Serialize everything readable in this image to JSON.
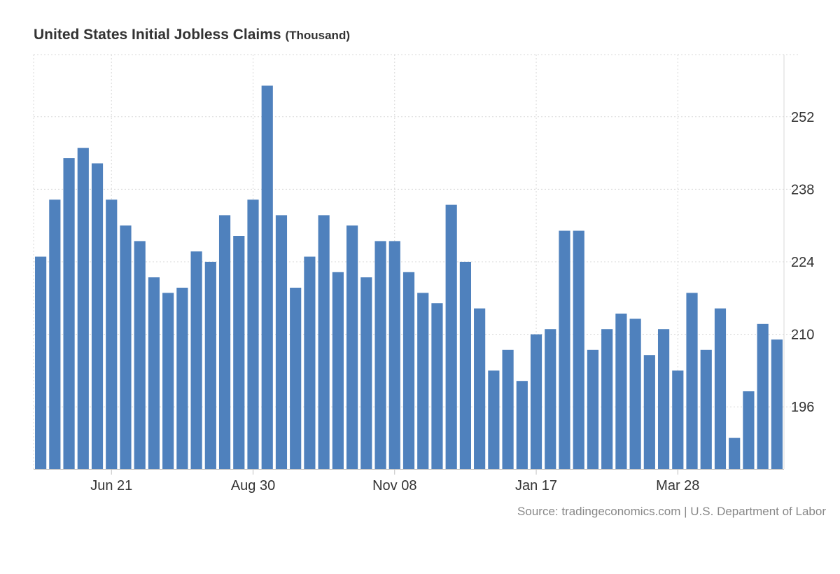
{
  "chart_data": {
    "type": "bar",
    "title": "United States Initial Jobless Claims",
    "unit": "(Thousand)",
    "source": "Source: tradingeconomics.com | U.S. Department of Labor",
    "bar_color": "#4f81bd",
    "grid": true,
    "ylim": [
      184,
      264
    ],
    "y_ticks": [
      196,
      210,
      224,
      238,
      252
    ],
    "x_ticks": [
      {
        "label": "Jun 21",
        "index": 5
      },
      {
        "label": "Aug 30",
        "index": 15
      },
      {
        "label": "Nov 08",
        "index": 25
      },
      {
        "label": "Jan 17",
        "index": 35
      },
      {
        "label": "Mar 28",
        "index": 45
      }
    ],
    "values": [
      225,
      236,
      244,
      246,
      243,
      236,
      231,
      228,
      221,
      218,
      219,
      226,
      224,
      233,
      229,
      236,
      258,
      233,
      219,
      225,
      233,
      222,
      231,
      221,
      228,
      228,
      222,
      218,
      216,
      235,
      224,
      215,
      203,
      207,
      201,
      210,
      211,
      230,
      230,
      207,
      211,
      214,
      213,
      206,
      211,
      203,
      218,
      207,
      215,
      190,
      199,
      212,
      209
    ]
  }
}
